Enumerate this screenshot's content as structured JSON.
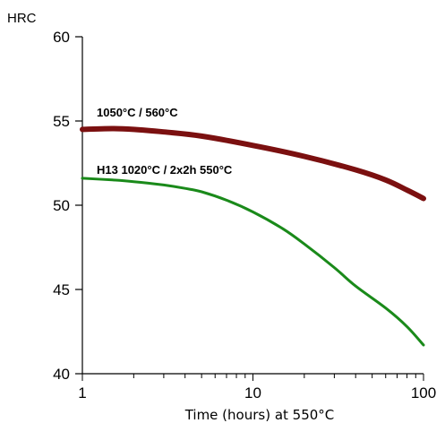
{
  "chart_data": {
    "type": "line",
    "x_scale": "log",
    "xlim": [
      1,
      100
    ],
    "ylim": [
      40,
      60
    ],
    "xlabel": "Time (hours) at 550°C",
    "ylabel": "HRC",
    "x_ticks": [
      "1",
      "10",
      "100"
    ],
    "y_ticks": [
      "40",
      "45",
      "50",
      "55",
      "60"
    ],
    "grid": false,
    "series": [
      {
        "name": "1050°C / 560°C",
        "color": "#7b1010",
        "x": [
          1,
          1.5,
          2,
          3,
          5,
          10,
          20,
          40,
          60,
          80,
          100
        ],
        "y": [
          54.5,
          54.55,
          54.5,
          54.35,
          54.1,
          53.55,
          52.9,
          52.1,
          51.5,
          50.9,
          50.4
        ]
      },
      {
        "name": "H13 1020°C / 2x2h 550°C",
        "color": "#1a8a1a",
        "x": [
          1,
          1.5,
          2,
          3,
          4,
          5,
          7,
          10,
          15,
          20,
          30,
          40,
          60,
          80,
          100
        ],
        "y": [
          51.6,
          51.5,
          51.4,
          51.2,
          51.0,
          50.8,
          50.3,
          49.6,
          48.6,
          47.7,
          46.3,
          45.2,
          43.9,
          42.8,
          41.7
        ]
      }
    ]
  }
}
